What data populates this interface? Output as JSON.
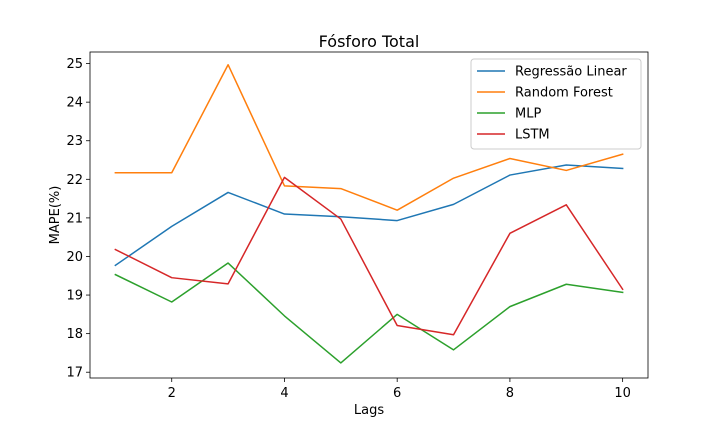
{
  "chart_data": {
    "type": "line",
    "title": "Fósforo Total",
    "xlabel": "Lags",
    "ylabel": "MAPE(%)",
    "xlim": [
      0.55,
      10.45
    ],
    "ylim": [
      16.85,
      25.3
    ],
    "xticks": [
      2,
      4,
      6,
      8,
      10
    ],
    "yticks": [
      17,
      18,
      19,
      20,
      21,
      22,
      23,
      24,
      25
    ],
    "grid": false,
    "legend_position": "top-right",
    "x": [
      1,
      2,
      3,
      4,
      5,
      6,
      7,
      8,
      9,
      10
    ],
    "series": [
      {
        "name": "Regressão Linear",
        "color": "#1f77b4",
        "values": [
          19.77,
          20.78,
          21.66,
          21.1,
          21.03,
          20.93,
          21.35,
          22.11,
          22.37,
          22.28
        ]
      },
      {
        "name": "Random Forest",
        "color": "#ff7f0e",
        "values": [
          22.17,
          22.17,
          24.97,
          21.83,
          21.76,
          21.2,
          22.03,
          22.54,
          22.23,
          22.65
        ]
      },
      {
        "name": "MLP",
        "color": "#2ca02c",
        "values": [
          19.53,
          18.82,
          19.83,
          18.46,
          17.24,
          18.5,
          17.58,
          18.7,
          19.28,
          19.07
        ]
      },
      {
        "name": "LSTM",
        "color": "#d62728",
        "values": [
          20.18,
          19.45,
          19.29,
          22.05,
          20.97,
          18.21,
          17.97,
          20.6,
          21.34,
          19.15
        ]
      }
    ]
  }
}
